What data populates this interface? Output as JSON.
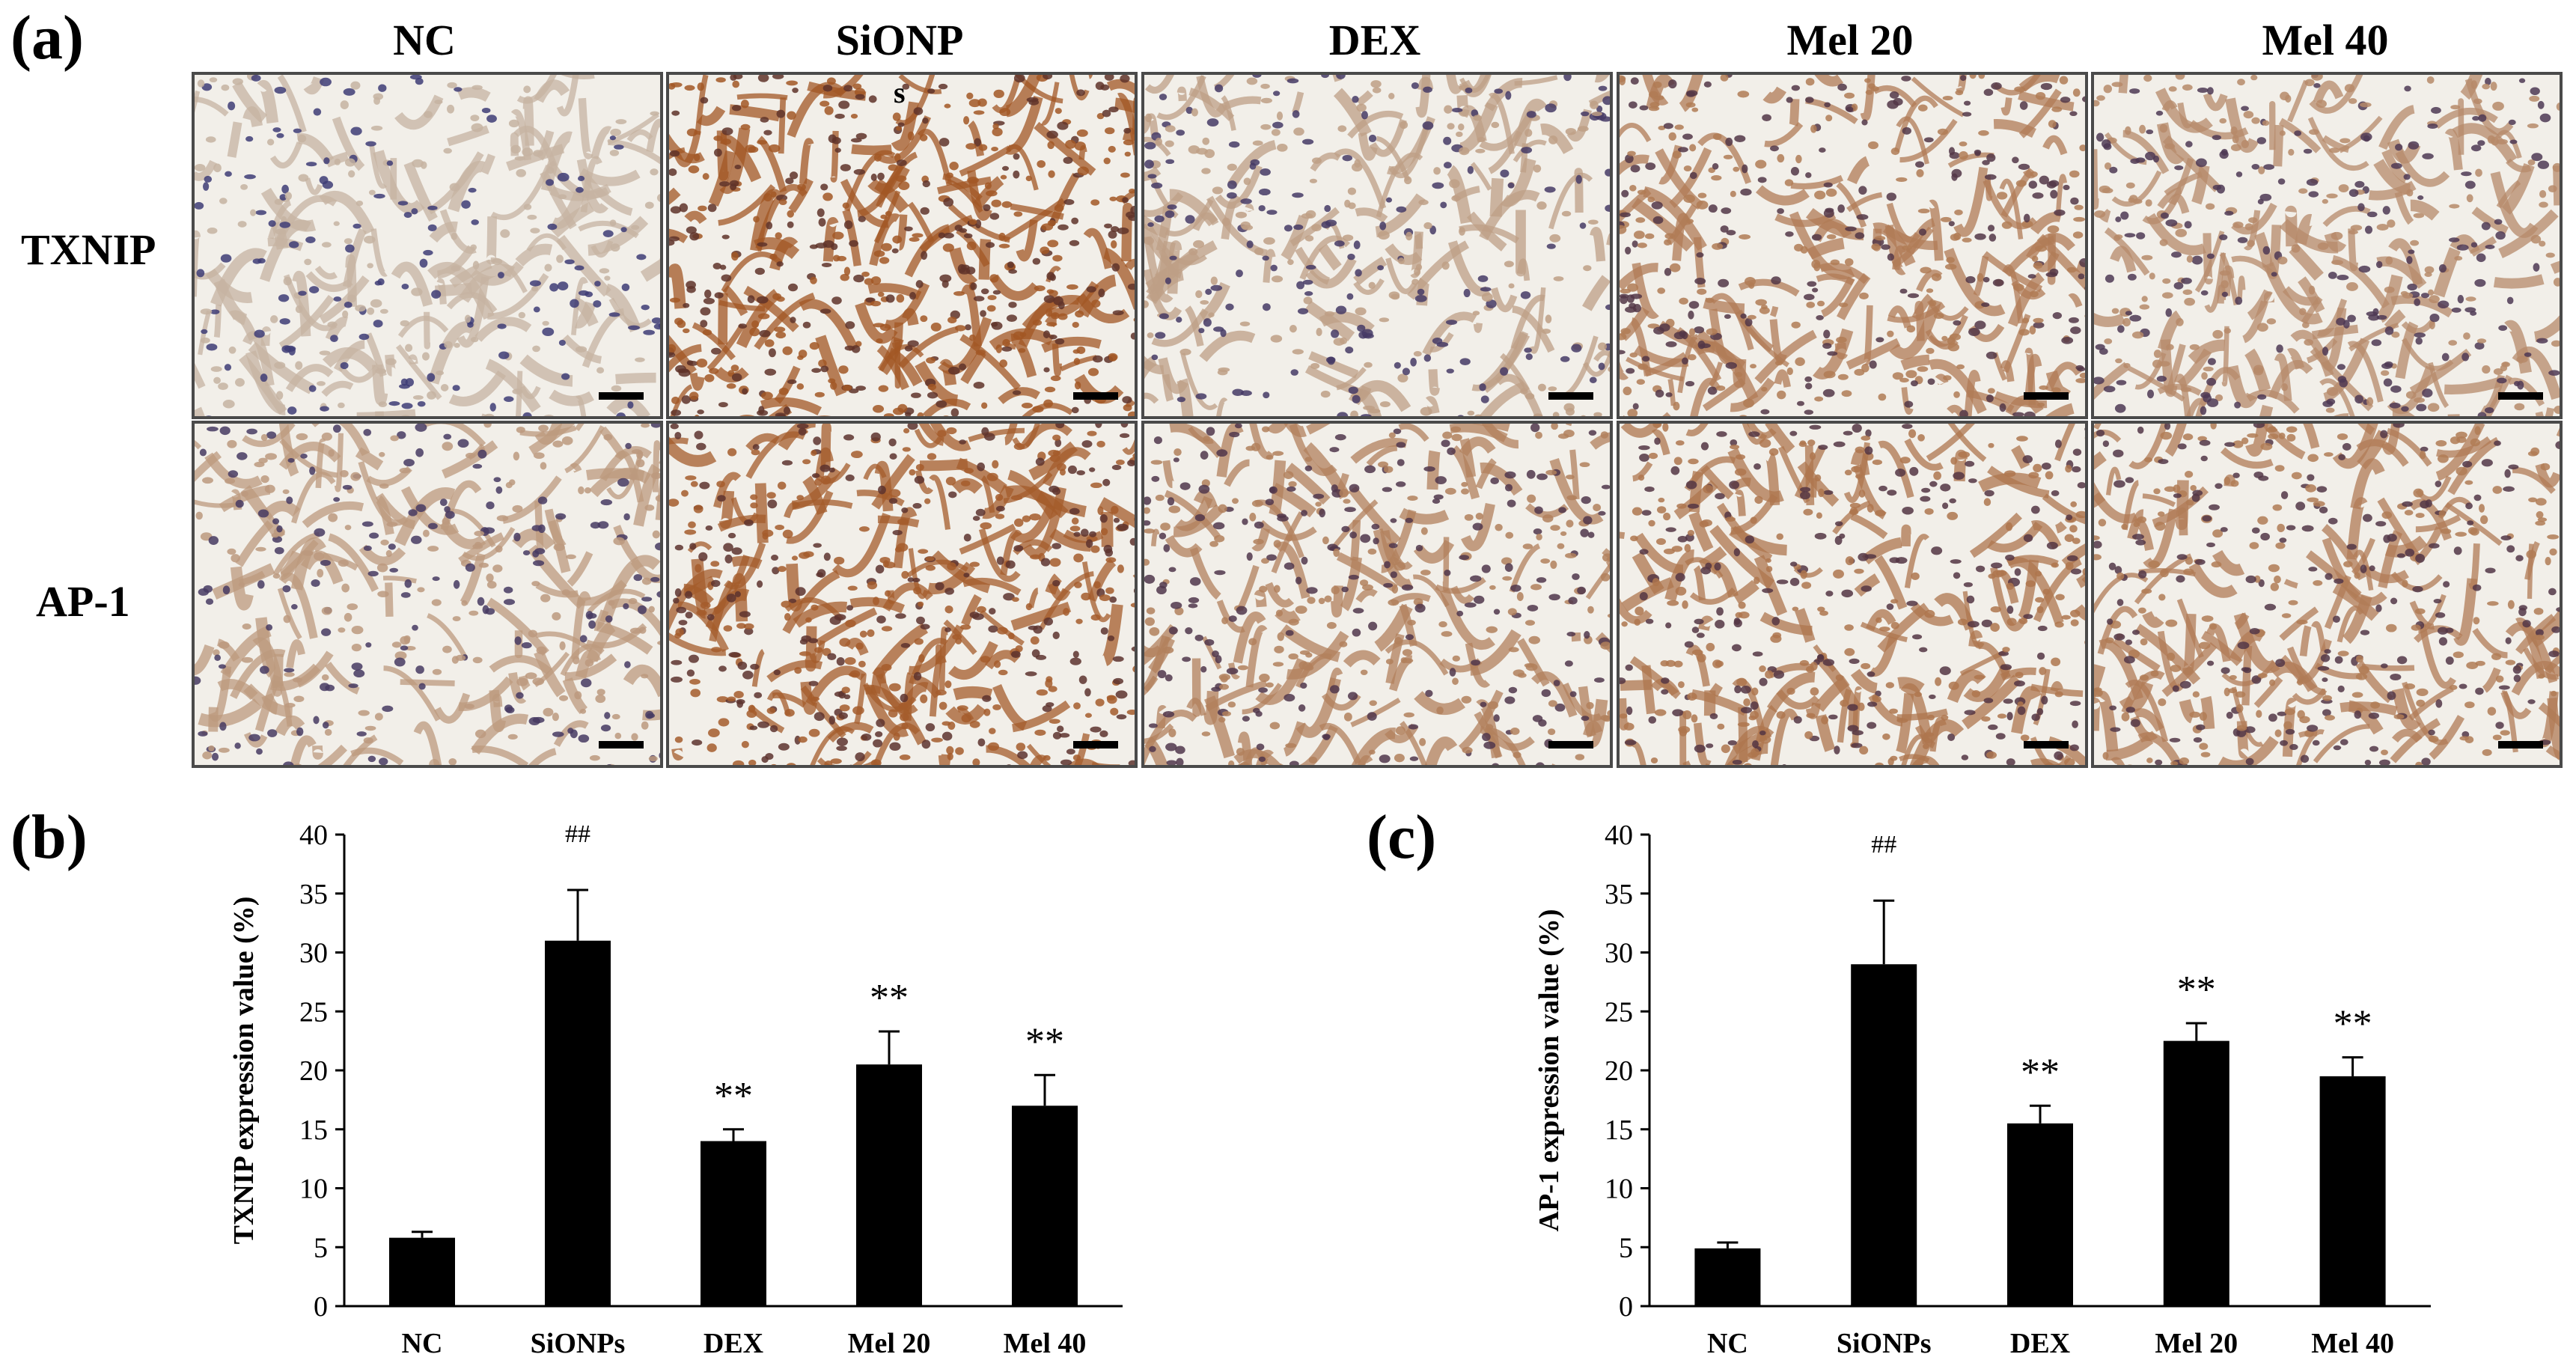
{
  "figure": {
    "panel_a_label": "(a)",
    "panel_b_label": "(b)",
    "panel_c_label": "(c)",
    "column_headers": [
      "NC",
      "SiONP",
      "DEX",
      "Mel 20",
      "Mel 40"
    ],
    "row_labels": [
      "TXNIP",
      "AP-1"
    ],
    "stain_intensity": {
      "TXNIP": [
        0.05,
        0.95,
        0.25,
        0.6,
        0.45
      ],
      "AP-1": [
        0.3,
        0.9,
        0.55,
        0.65,
        0.6
      ]
    },
    "micro_annotation": "s",
    "colors": {
      "background_tissue": "#f2efe9",
      "hematoxylin": "#3c3d7a",
      "dab": "#a0521d",
      "frame": "#4a4a4a"
    }
  },
  "chart_data": [
    {
      "type": "bar",
      "panel": "(b)",
      "categories": [
        "NC",
        "SiONPs",
        "DEX",
        "Mel 20",
        "Mel 40"
      ],
      "values": [
        5.8,
        31.0,
        14.0,
        20.5,
        17.0
      ],
      "errors": [
        0.5,
        4.3,
        1.0,
        2.8,
        2.6
      ],
      "annotations": [
        "",
        "##",
        "**",
        "**",
        "**"
      ],
      "ylabel": "TXNIP expression value (%)",
      "ylim": [
        0,
        40
      ],
      "yticks": [
        0,
        5,
        10,
        15,
        20,
        25,
        30,
        35,
        40
      ],
      "bar_color": "#000000"
    },
    {
      "type": "bar",
      "panel": "(c)",
      "categories": [
        "NC",
        "SiONPs",
        "DEX",
        "Mel 20",
        "Mel 40"
      ],
      "values": [
        4.9,
        29.0,
        15.5,
        22.5,
        19.5
      ],
      "errors": [
        0.5,
        5.4,
        1.5,
        1.5,
        1.6
      ],
      "annotations": [
        "",
        "##",
        "**",
        "**",
        "**"
      ],
      "ylabel": "AP-1 expression value (%)",
      "ylim": [
        0,
        40
      ],
      "yticks": [
        0,
        5,
        10,
        15,
        20,
        25,
        30,
        35,
        40
      ],
      "bar_color": "#000000"
    }
  ]
}
